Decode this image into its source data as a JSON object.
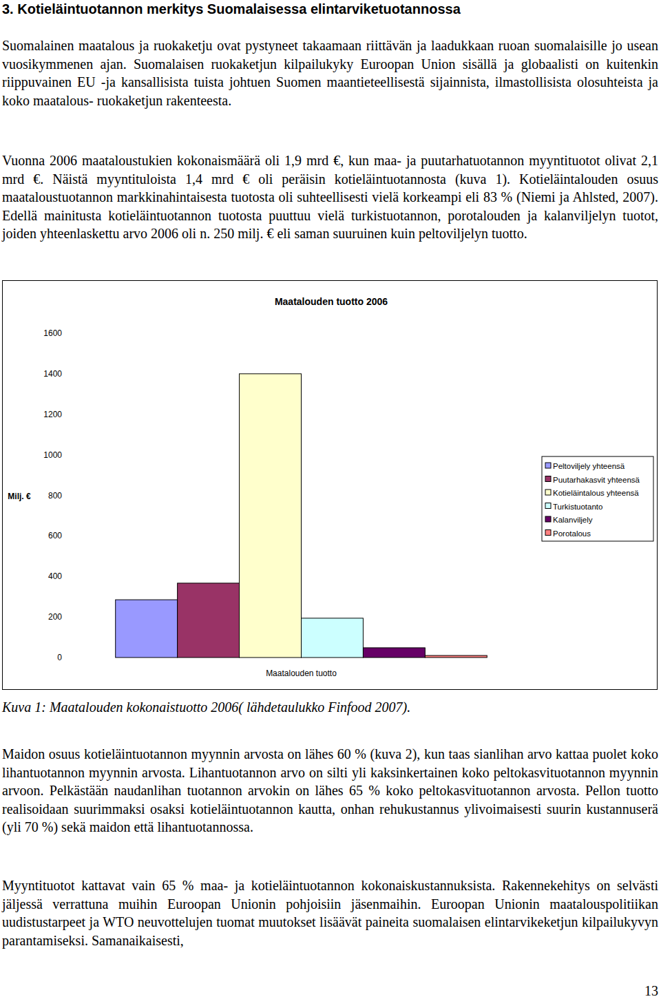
{
  "heading": "3. Kotieläintuotannon merkitys Suomalaisessa elintarviketuotannossa",
  "paragraphs": [
    "Suomalainen maatalous ja ruokaketju ovat pystyneet takaamaan riittävän ja laadukkaan ruoan suomalaisille jo usean vuosikymmenen ajan. Suomalaisen ruokaketjun kilpailukyky Euroopan Union sisällä ja globaalisti on kuitenkin riippuvainen EU -ja kansallisista tuista johtuen Suomen maantieteellisestä sijainnista, ilmastollisista olosuhteista ja koko maatalous- ruokaketjun rakenteesta.",
    "Vuonna 2006 maataloustukien kokonaismäärä oli 1,9 mrd €, kun maa- ja puutarhatuotannon myyntituotot olivat 2,1 mrd €. Näistä myyntituloista 1,4 mrd € oli peräisin kotieläintuotannosta (kuva 1). Kotieläintalouden osuus maataloustuotannon markkinahintaisesta tuotosta oli suhteellisesti vielä korkeampi eli 83 % (Niemi ja Ahlsted, 2007). Edellä mainitusta kotieläintuotannon tuotosta puuttuu vielä turkistuotannon, porotalouden ja kalanviljelyn tuotot, joiden yhteenlaskettu arvo 2006 oli n. 250 milj. € eli saman suuruinen kuin peltoviljelyn tuotto.",
    "Maidon osuus kotieläintuotannon myynnin arvosta on lähes 60 % (kuva 2), kun taas sianlihan arvo kattaa puolet koko lihantuotannon myynnin arvosta. Lihantuotannon arvo on silti yli kaksinkertainen koko peltokasvituotannon myynnin arvoon. Pelkästään naudanlihan tuotannon arvokin on lähes 65 % koko peltokasvituotannon arvosta. Pellon tuotto realisoidaan suurimmaksi osaksi kotieläintuotannon kautta, onhan rehukustannus ylivoimaisesti suurin kustannuserä (yli 70 %) sekä maidon että lihantuotannossa.",
    "Myyntituotot kattavat vain 65 % maa- ja kotieläintuotannon kokonaiskustannuksista. Rakennekehitys on selvästi jäljessä verrattuna muihin Euroopan Unionin pohjoisiin jäsenmaihin. Euroopan Unionin maatalouspolitiikan uudistustarpeet ja WTO neuvottelujen tuomat muutokset lisäävät paineita suomalaisen elintarvikeketjun kilpailukyvyn parantamiseksi. Samanaikaisesti,"
  ],
  "chart_data": {
    "type": "bar",
    "title": "Maatalouden tuotto 2006",
    "y_label": "Milj. €",
    "categories": [
      "Maatalouden tuotto"
    ],
    "series": [
      {
        "name": "Peltoviljely yhteensä",
        "color": "#9999ff",
        "values": [
          285
        ]
      },
      {
        "name": "Puutarhakasvit yhteensä",
        "color": "#993366",
        "values": [
          367
        ]
      },
      {
        "name": "Kotieläintalous yhteensä",
        "color": "#ffffcc",
        "values": [
          1400
        ]
      },
      {
        "name": "Turkistuotanto",
        "color": "#ccffff",
        "values": [
          194
        ]
      },
      {
        "name": "Kalanviljely",
        "color": "#660066",
        "values": [
          48
        ]
      },
      {
        "name": "Porotalous",
        "color": "#ff8080",
        "values": [
          10
        ]
      }
    ],
    "ylim": [
      0,
      1600
    ],
    "yticks": [
      0,
      200,
      400,
      600,
      800,
      1000,
      1200,
      1400,
      1600
    ],
    "grid": false,
    "legend": "right"
  },
  "caption": "Kuva 1: Maatalouden kokonaistuotto 2006( lähdetaulukko Finfood 2007).",
  "page_number": "13"
}
